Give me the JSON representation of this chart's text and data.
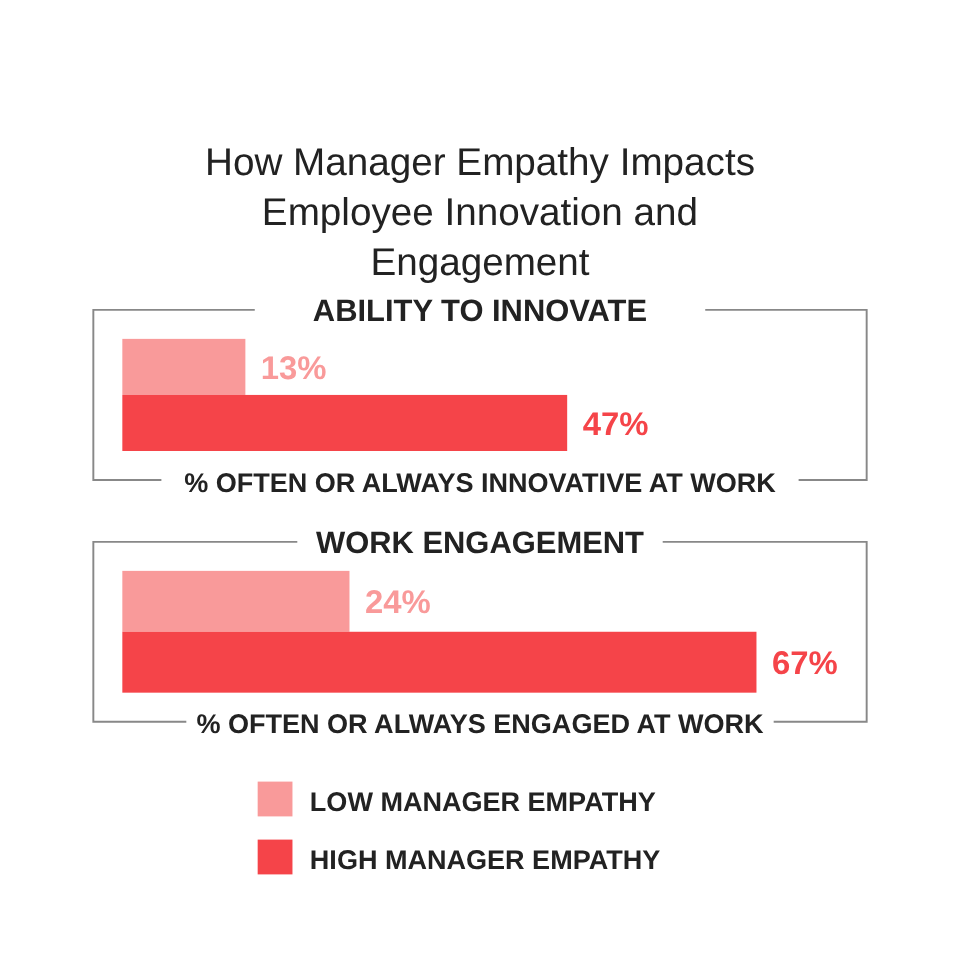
{
  "chart_data": [
    {
      "type": "bar",
      "orientation": "horizontal",
      "title": "How Manager Empathy Impacts Employee Innovation and Engagement",
      "subtitle": "ABILITY TO INNOVATE",
      "xlabel": "% OFTEN OR ALWAYS INNOVATIVE AT WORK",
      "categories": [
        null
      ],
      "series": [
        {
          "color": "#f99a9a",
          "values": [
            13
          ],
          "value_labels": [
            "13%"
          ]
        },
        {
          "color": "#f54449",
          "values": [
            47
          ],
          "value_labels": [
            "47%"
          ]
        }
      ]
    },
    {
      "type": "bar",
      "orientation": "horizontal",
      "subtitle": "WORK ENGAGEMENT",
      "xlabel": "% OFTEN OR ALWAYS ENGAGED AT WORK",
      "categories": [
        null
      ],
      "legend": "bottom",
      "series": [
        {
          "name": "LOW MANAGER EMPATHY",
          "color": "#f99a9a",
          "values": [
            24
          ],
          "value_labels": [
            "24%"
          ]
        },
        {
          "name": "HIGH MANAGER EMPATHY",
          "color": "#f54449",
          "values": [
            67
          ],
          "value_labels": [
            "67%"
          ]
        }
      ]
    }
  ]
}
